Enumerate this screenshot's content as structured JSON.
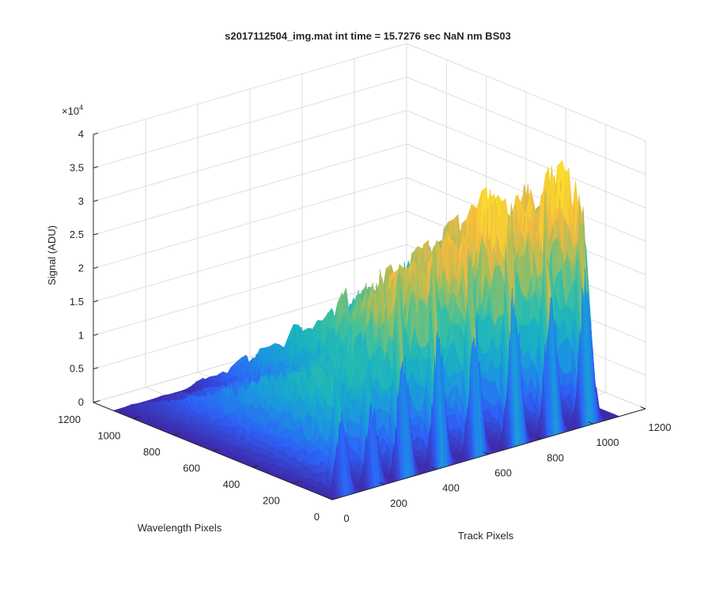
{
  "chart_data": {
    "type": "surface",
    "title": "s2017112504_img.mat int time = 15.7276 sec  NaN nm BS03",
    "xlabel": "Track Pixels",
    "ylabel": "Wavelength Pixels",
    "zlabel": "Signal (ADU)",
    "z_exponent_label": "×10",
    "z_exponent_power": "4",
    "xlim": [
      0,
      1200
    ],
    "ylim": [
      0,
      1200
    ],
    "zlim": [
      0,
      40000
    ],
    "x_ticks": [
      "0",
      "200",
      "400",
      "600",
      "800",
      "1000",
      "1200"
    ],
    "y_ticks": [
      "0",
      "200",
      "400",
      "600",
      "800",
      "1000",
      "1200"
    ],
    "z_ticks": [
      "0",
      "0.5",
      "1",
      "1.5",
      "2",
      "2.5",
      "3",
      "3.5",
      "4"
    ],
    "grid": true,
    "colormap": "parula",
    "colors": [
      "#3e26a8",
      "#2d62f7",
      "#1b96e0",
      "#1ab4c0",
      "#3ec09e",
      "#a4be5b",
      "#f4b940",
      "#f9dc2c"
    ],
    "surface_extent": {
      "x_max": 1100,
      "y_max": 1100
    },
    "tracks": [
      {
        "x_center": 55,
        "peak_signal": 17000
      },
      {
        "x_center": 170,
        "peak_signal": 17500
      },
      {
        "x_center": 290,
        "peak_signal": 27000
      },
      {
        "x_center": 425,
        "peak_signal": 27500
      },
      {
        "x_center": 565,
        "peak_signal": 29500
      },
      {
        "x_center": 715,
        "peak_signal": 33000
      },
      {
        "x_center": 855,
        "peak_signal": 31000
      },
      {
        "x_center": 990,
        "peak_signal": 33500
      }
    ]
  }
}
